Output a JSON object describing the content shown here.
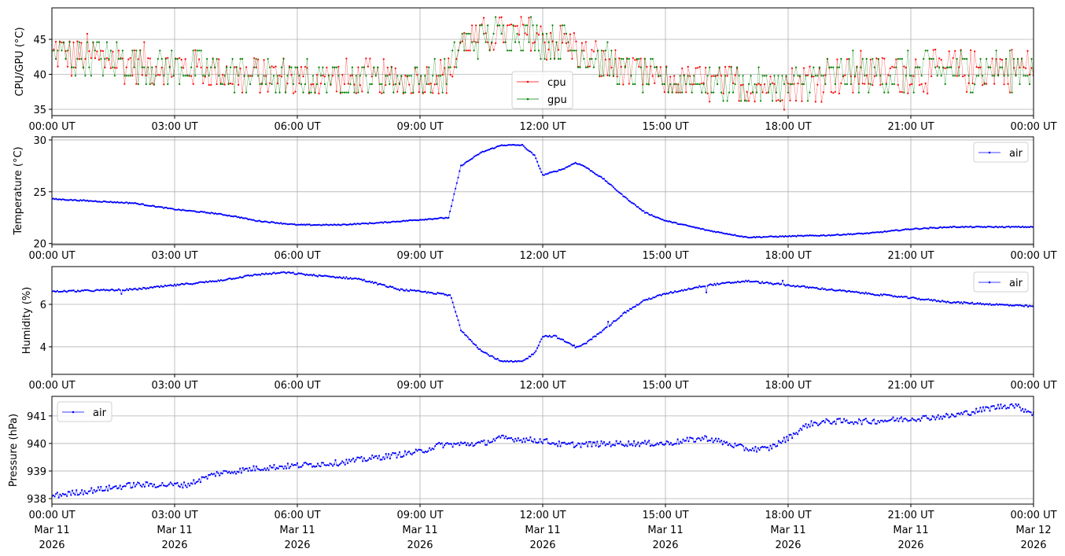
{
  "chart_data": [
    {
      "type": "line",
      "ylabel": "CPU/GPU (°C)",
      "ylim": [
        34.1,
        49.5
      ],
      "yticks": [
        35,
        40,
        45
      ],
      "legend_placement": "lower-center",
      "grid": true,
      "x_unit": "hours since 00:00 UT Mar 11 2026",
      "series": [
        {
          "name": "cpu",
          "color": "#ff0000",
          "x": [
            0,
            3,
            5,
            6,
            9,
            9.7,
            10,
            11,
            11.5,
            12,
            12.5,
            13,
            14,
            15,
            17,
            18,
            19,
            21,
            24
          ],
          "center": [
            43,
            41,
            39.8,
            39.3,
            39.3,
            40,
            44.5,
            46,
            46,
            45,
            44.5,
            43,
            40.5,
            39,
            38.5,
            38.2,
            39.8,
            40.3,
            41
          ],
          "amplitude": [
            3,
            2.8,
            2.8,
            2.5,
            2.5,
            2.5,
            2.8,
            2.5,
            2.5,
            2.8,
            3,
            2.8,
            2.5,
            2.3,
            2.5,
            2.8,
            3,
            3,
            3
          ]
        },
        {
          "name": "gpu",
          "color": "#008000",
          "x": [
            0,
            3,
            5,
            6,
            9,
            9.7,
            10,
            11,
            11.5,
            12,
            12.5,
            13,
            14,
            15,
            17,
            18,
            19,
            21,
            24
          ],
          "center": [
            43,
            41,
            39.8,
            39.3,
            39.3,
            40,
            44.5,
            46,
            46,
            45,
            44.5,
            43,
            40.5,
            39,
            38.5,
            38.2,
            39.8,
            40.3,
            41
          ],
          "amplitude": [
            3,
            2.8,
            2.8,
            2.5,
            2.5,
            2.5,
            2.8,
            2.5,
            2.5,
            2.8,
            3,
            2.8,
            2.5,
            2.3,
            2.5,
            2.8,
            3,
            3,
            3
          ]
        }
      ]
    },
    {
      "type": "line",
      "ylabel": "Temperature (°C)",
      "ylim": [
        19.9,
        30.3
      ],
      "yticks": [
        20,
        25,
        30
      ],
      "legend_placement": "upper-right",
      "grid": true,
      "series": [
        {
          "name": "air",
          "color": "#0000ff",
          "x": [
            0,
            1,
            2,
            3,
            4,
            4.5,
            5,
            6,
            7,
            8,
            9,
            9.7,
            10,
            10.5,
            11,
            11.5,
            11.8,
            12,
            12.5,
            12.8,
            13,
            13.5,
            14,
            14.5,
            15,
            16,
            17,
            18,
            19,
            20,
            21,
            22,
            23,
            24
          ],
          "y": [
            24.3,
            24.1,
            23.9,
            23.3,
            22.9,
            22.6,
            22.2,
            21.8,
            21.8,
            22.0,
            22.3,
            22.5,
            27.5,
            28.8,
            29.5,
            29.5,
            28.5,
            26.6,
            27.2,
            27.8,
            27.5,
            26.2,
            24.5,
            23.0,
            22.2,
            21.3,
            20.6,
            20.7,
            20.8,
            21.0,
            21.4,
            21.6,
            21.6,
            21.6
          ]
        }
      ]
    },
    {
      "type": "line",
      "ylabel": "Humidity (%)",
      "ylim": [
        2.7,
        7.78
      ],
      "yticks": [
        4,
        6
      ],
      "legend_placement": "upper-right",
      "grid": true,
      "series": [
        {
          "name": "air",
          "color": "#0000ff",
          "x": [
            0,
            2,
            3,
            4,
            5,
            5.7,
            6.5,
            7.5,
            8.5,
            9.5,
            9.75,
            10,
            10.5,
            11,
            11.5,
            11.8,
            12,
            12.3,
            12.8,
            13,
            13.5,
            14,
            14.5,
            15,
            16,
            17,
            18,
            19,
            20,
            21,
            22,
            23,
            24
          ],
          "y": [
            6.6,
            6.7,
            6.9,
            7.1,
            7.4,
            7.5,
            7.35,
            7.2,
            6.7,
            6.5,
            6.4,
            4.8,
            3.8,
            3.3,
            3.3,
            3.7,
            4.5,
            4.5,
            4.0,
            4.1,
            4.8,
            5.6,
            6.2,
            6.5,
            6.9,
            7.1,
            6.9,
            6.7,
            6.5,
            6.3,
            6.1,
            6.0,
            5.9
          ]
        }
      ]
    },
    {
      "type": "line",
      "ylabel": "Pressure (hPa)",
      "ylim": [
        937.8,
        941.71
      ],
      "yticks": [
        938,
        939,
        940,
        941
      ],
      "legend_placement": "upper-left",
      "grid": true,
      "series": [
        {
          "name": "air",
          "color": "#0000ff",
          "x": [
            0,
            1,
            2,
            3,
            3.3,
            4,
            5,
            6,
            7,
            8,
            9,
            9.5,
            10.5,
            11,
            12,
            12.5,
            14,
            15,
            16,
            17,
            17.5,
            18,
            18.5,
            19,
            20,
            21,
            22,
            23,
            23.5,
            24
          ],
          "y": [
            938.1,
            938.3,
            938.5,
            938.5,
            938.5,
            938.9,
            939.1,
            939.2,
            939.3,
            939.5,
            939.7,
            939.95,
            940.0,
            940.2,
            940.1,
            939.95,
            940.0,
            940.0,
            940.2,
            939.8,
            939.8,
            940.2,
            940.7,
            940.8,
            940.8,
            940.9,
            941.0,
            941.3,
            941.4,
            941.1
          ]
        }
      ]
    }
  ],
  "xaxis": {
    "tick_hours": [
      0,
      3,
      6,
      9,
      12,
      15,
      18,
      21,
      24
    ],
    "tick_labels": [
      "00:00 UT",
      "03:00 UT",
      "06:00 UT",
      "09:00 UT",
      "12:00 UT",
      "15:00 UT",
      "18:00 UT",
      "21:00 UT",
      "00:00 UT"
    ],
    "date_labels": [
      "Mar 11",
      "Mar 11",
      "Mar 11",
      "Mar 11",
      "Mar 11",
      "Mar 11",
      "Mar 11",
      "Mar 11",
      "Mar 12"
    ],
    "year_labels": [
      "2026",
      "2026",
      "2026",
      "2026",
      "2026",
      "2026",
      "2026",
      "2026",
      "2026"
    ],
    "xlim": [
      0,
      24
    ]
  }
}
